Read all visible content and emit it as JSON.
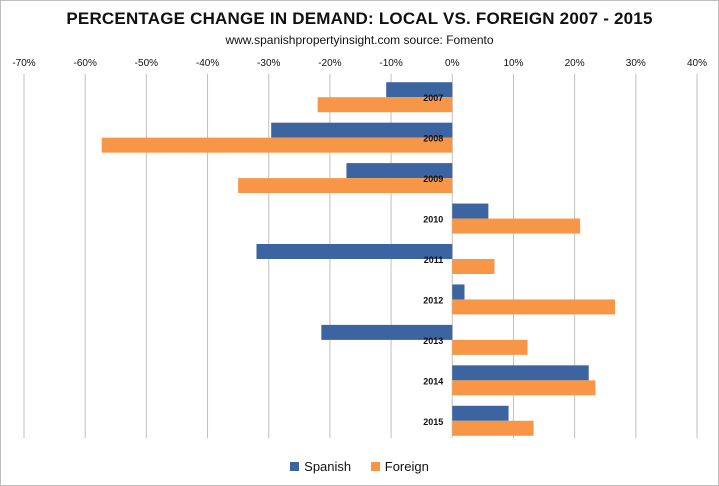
{
  "chart_data": {
    "type": "bar",
    "orientation": "horizontal",
    "title": "PERCENTAGE CHANGE IN DEMAND: LOCAL VS. FOREIGN 2007 - 2015",
    "subtitle": "www.spanishpropertyinsight.com source: Fomento",
    "categories": [
      "2007",
      "2008",
      "2009",
      "2010",
      "2011",
      "2012",
      "2013",
      "2014",
      "2015"
    ],
    "series": [
      {
        "name": "Spanish",
        "color": "#3b64a0",
        "values": [
          -10.8,
          -29.6,
          -17.3,
          5.9,
          -32.0,
          2.0,
          -21.4,
          22.3,
          9.2
        ]
      },
      {
        "name": "Foreign",
        "color": "#f79646",
        "values": [
          -22.0,
          -57.3,
          -35.0,
          20.9,
          6.9,
          26.6,
          12.3,
          23.4,
          13.3
        ]
      }
    ],
    "xlim": [
      -70,
      40
    ],
    "xticks": [
      "-70%",
      "-60%",
      "-50%",
      "-40%",
      "-30%",
      "-20%",
      "-10%",
      "0%",
      "10%",
      "20%",
      "30%",
      "40%"
    ],
    "axis_position": "top",
    "grid": true,
    "legend_position": "bottom"
  }
}
